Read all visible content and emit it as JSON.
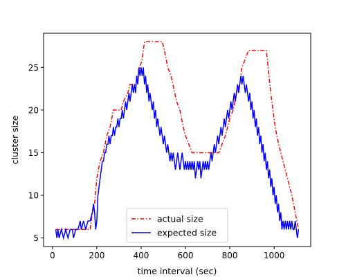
{
  "chart_data": {
    "type": "line",
    "xlabel": "time interval (sec)",
    "ylabel": "cluster size",
    "xlim": [
      -40,
      1165
    ],
    "ylim": [
      4,
      29
    ],
    "xticks": [
      0,
      200,
      400,
      600,
      800,
      1000
    ],
    "yticks": [
      5,
      10,
      15,
      20,
      25
    ],
    "grid": false,
    "legend_position": "bottom-center",
    "series": [
      {
        "name": "actual size",
        "color": "#ff0000",
        "style": "dashdot",
        "points": [
          [
            15,
            6
          ],
          [
            170,
            6
          ],
          [
            180,
            8
          ],
          [
            190,
            9
          ],
          [
            200,
            12
          ],
          [
            215,
            14
          ],
          [
            230,
            15
          ],
          [
            245,
            17
          ],
          [
            260,
            18
          ],
          [
            275,
            20
          ],
          [
            310,
            20
          ],
          [
            320,
            21
          ],
          [
            340,
            22
          ],
          [
            350,
            23
          ],
          [
            375,
            23
          ],
          [
            385,
            24
          ],
          [
            395,
            25
          ],
          [
            405,
            26
          ],
          [
            415,
            28
          ],
          [
            495,
            28
          ],
          [
            505,
            27
          ],
          [
            520,
            25
          ],
          [
            535,
            24
          ],
          [
            560,
            21
          ],
          [
            575,
            20
          ],
          [
            590,
            18
          ],
          [
            600,
            17
          ],
          [
            615,
            16
          ],
          [
            630,
            15
          ],
          [
            750,
            15
          ],
          [
            765,
            16
          ],
          [
            780,
            17
          ],
          [
            800,
            19
          ],
          [
            815,
            20
          ],
          [
            830,
            22
          ],
          [
            845,
            23
          ],
          [
            855,
            25
          ],
          [
            870,
            26
          ],
          [
            885,
            27
          ],
          [
            965,
            27
          ],
          [
            985,
            22
          ],
          [
            1005,
            18
          ],
          [
            1020,
            16
          ],
          [
            1040,
            14
          ],
          [
            1060,
            12
          ],
          [
            1080,
            10
          ],
          [
            1095,
            8
          ],
          [
            1110,
            6
          ]
        ]
      },
      {
        "name": "expected size",
        "color": "#0000ff",
        "style": "solid",
        "points": [
          [
            15,
            6
          ],
          [
            20,
            5
          ],
          [
            25,
            6
          ],
          [
            30,
            5
          ],
          [
            40,
            6
          ],
          [
            50,
            5
          ],
          [
            60,
            6
          ],
          [
            70,
            5
          ],
          [
            80,
            6
          ],
          [
            90,
            6
          ],
          [
            95,
            5
          ],
          [
            105,
            6
          ],
          [
            115,
            6
          ],
          [
            125,
            7
          ],
          [
            130,
            6
          ],
          [
            140,
            7
          ],
          [
            150,
            6
          ],
          [
            160,
            7
          ],
          [
            170,
            7
          ],
          [
            180,
            8
          ],
          [
            185,
            9
          ],
          [
            190,
            8
          ],
          [
            195,
            6
          ],
          [
            200,
            7
          ],
          [
            205,
            10
          ],
          [
            210,
            11
          ],
          [
            215,
            12
          ],
          [
            220,
            13
          ],
          [
            225,
            14
          ],
          [
            230,
            14
          ],
          [
            235,
            15
          ],
          [
            240,
            15
          ],
          [
            245,
            16
          ],
          [
            250,
            16
          ],
          [
            255,
            17
          ],
          [
            260,
            16
          ],
          [
            265,
            17
          ],
          [
            270,
            17
          ],
          [
            275,
            18
          ],
          [
            280,
            17
          ],
          [
            285,
            18
          ],
          [
            290,
            18
          ],
          [
            295,
            19
          ],
          [
            300,
            18
          ],
          [
            305,
            19
          ],
          [
            310,
            19
          ],
          [
            315,
            20
          ],
          [
            320,
            19
          ],
          [
            325,
            20
          ],
          [
            330,
            21
          ],
          [
            335,
            20
          ],
          [
            340,
            21
          ],
          [
            345,
            22
          ],
          [
            350,
            21
          ],
          [
            355,
            22
          ],
          [
            360,
            23
          ],
          [
            365,
            22
          ],
          [
            370,
            23
          ],
          [
            375,
            22
          ],
          [
            380,
            24
          ],
          [
            385,
            23
          ],
          [
            390,
            25
          ],
          [
            395,
            24
          ],
          [
            400,
            25
          ],
          [
            405,
            24
          ],
          [
            410,
            25
          ],
          [
            415,
            23
          ],
          [
            420,
            24
          ],
          [
            425,
            22
          ],
          [
            430,
            23
          ],
          [
            435,
            21
          ],
          [
            440,
            22
          ],
          [
            445,
            21
          ],
          [
            450,
            20
          ],
          [
            455,
            21
          ],
          [
            460,
            19
          ],
          [
            465,
            20
          ],
          [
            470,
            18
          ],
          [
            475,
            19
          ],
          [
            480,
            18
          ],
          [
            485,
            17
          ],
          [
            490,
            18
          ],
          [
            495,
            17
          ],
          [
            500,
            16
          ],
          [
            505,
            17
          ],
          [
            510,
            16
          ],
          [
            515,
            15
          ],
          [
            520,
            16
          ],
          [
            525,
            15
          ],
          [
            530,
            14
          ],
          [
            535,
            15
          ],
          [
            540,
            14
          ],
          [
            545,
            15
          ],
          [
            550,
            14
          ],
          [
            555,
            13
          ],
          [
            560,
            14
          ],
          [
            565,
            15
          ],
          [
            570,
            14
          ],
          [
            575,
            13
          ],
          [
            580,
            14
          ],
          [
            585,
            15
          ],
          [
            590,
            14
          ],
          [
            595,
            13
          ],
          [
            600,
            14
          ],
          [
            605,
            13
          ],
          [
            610,
            14
          ],
          [
            615,
            13
          ],
          [
            620,
            14
          ],
          [
            625,
            13
          ],
          [
            630,
            14
          ],
          [
            635,
            13
          ],
          [
            640,
            14
          ],
          [
            645,
            12
          ],
          [
            650,
            13
          ],
          [
            655,
            14
          ],
          [
            660,
            13
          ],
          [
            665,
            14
          ],
          [
            670,
            12
          ],
          [
            675,
            13
          ],
          [
            680,
            14
          ],
          [
            685,
            13
          ],
          [
            690,
            14
          ],
          [
            695,
            13
          ],
          [
            700,
            14
          ],
          [
            705,
            13
          ],
          [
            710,
            14
          ],
          [
            715,
            15
          ],
          [
            720,
            14
          ],
          [
            725,
            15
          ],
          [
            730,
            16
          ],
          [
            735,
            15
          ],
          [
            740,
            16
          ],
          [
            745,
            17
          ],
          [
            750,
            16
          ],
          [
            755,
            17
          ],
          [
            760,
            18
          ],
          [
            765,
            17
          ],
          [
            770,
            18
          ],
          [
            775,
            19
          ],
          [
            780,
            18
          ],
          [
            785,
            19
          ],
          [
            790,
            20
          ],
          [
            795,
            19
          ],
          [
            800,
            20
          ],
          [
            805,
            21
          ],
          [
            810,
            20
          ],
          [
            815,
            21
          ],
          [
            820,
            22
          ],
          [
            825,
            21
          ],
          [
            830,
            22
          ],
          [
            835,
            23
          ],
          [
            840,
            22
          ],
          [
            845,
            23
          ],
          [
            850,
            24
          ],
          [
            855,
            23
          ],
          [
            860,
            24
          ],
          [
            865,
            23
          ],
          [
            870,
            22
          ],
          [
            875,
            23
          ],
          [
            880,
            22
          ],
          [
            885,
            21
          ],
          [
            890,
            22
          ],
          [
            895,
            20
          ],
          [
            900,
            21
          ],
          [
            905,
            19
          ],
          [
            910,
            20
          ],
          [
            915,
            18
          ],
          [
            920,
            19
          ],
          [
            925,
            17
          ],
          [
            930,
            18
          ],
          [
            935,
            16
          ],
          [
            940,
            17
          ],
          [
            945,
            15
          ],
          [
            950,
            16
          ],
          [
            955,
            14
          ],
          [
            960,
            15
          ],
          [
            965,
            13
          ],
          [
            970,
            14
          ],
          [
            975,
            12
          ],
          [
            980,
            13
          ],
          [
            985,
            11
          ],
          [
            990,
            12
          ],
          [
            995,
            10
          ],
          [
            1000,
            11
          ],
          [
            1005,
            9
          ],
          [
            1010,
            10
          ],
          [
            1015,
            8
          ],
          [
            1020,
            9
          ],
          [
            1025,
            7
          ],
          [
            1030,
            8
          ],
          [
            1035,
            6
          ],
          [
            1040,
            7
          ],
          [
            1045,
            6
          ],
          [
            1050,
            7
          ],
          [
            1055,
            6
          ],
          [
            1060,
            7
          ],
          [
            1065,
            6
          ],
          [
            1070,
            7
          ],
          [
            1075,
            6
          ],
          [
            1080,
            7
          ],
          [
            1085,
            6
          ],
          [
            1090,
            6
          ],
          [
            1095,
            7
          ],
          [
            1100,
            6
          ],
          [
            1105,
            5
          ],
          [
            1110,
            6
          ]
        ]
      }
    ]
  }
}
